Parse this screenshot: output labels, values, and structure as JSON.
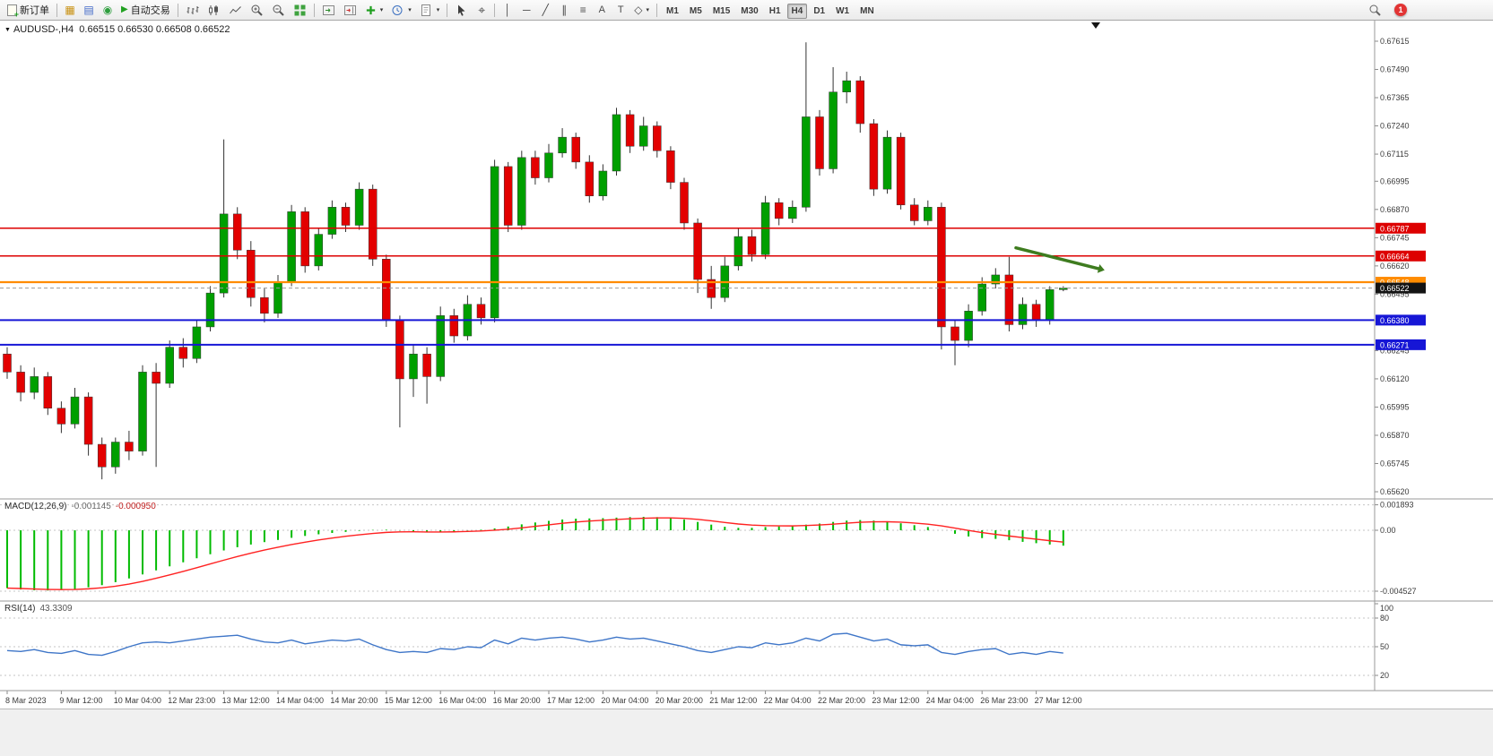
{
  "toolbar": {
    "new_order": "新订单",
    "autotrading": "自动交易",
    "timeframes": [
      "M1",
      "M5",
      "M15",
      "M30",
      "H1",
      "H4",
      "D1",
      "W1",
      "MN"
    ],
    "active_timeframe": "H4",
    "notification_count": "1"
  },
  "panels": {
    "main": {
      "symbol_period": "AUDUSD-,H4",
      "ohlc": "0.66515 0.66530 0.66508 0.66522"
    },
    "macd": {
      "name": "MACD(12,26,9)",
      "value_main": "-0.001145",
      "value_signal": "-0.000950"
    },
    "rsi": {
      "name": "RSI(14)",
      "value": "43.3309"
    }
  },
  "chart_data": [
    {
      "type": "candlestick",
      "title": "AUDUSD-,H4",
      "open": "0.66515",
      "high": "0.66530",
      "low": "0.66508",
      "close": "0.66522",
      "price_axis_labels": [
        "0.67615",
        "0.67490",
        "0.67365",
        "0.67240",
        "0.67115",
        "0.66995",
        "0.66870",
        "0.66745",
        "0.66620",
        "0.66495",
        "0.66245",
        "0.66120",
        "0.65995",
        "0.65870",
        "0.65745",
        "0.65620"
      ],
      "x_labels": [
        "8 Mar 2023",
        "9 Mar 12:00",
        "10 Mar 04:00",
        "12 Mar 23:00",
        "13 Mar 12:00",
        "14 Mar 04:00",
        "14 Mar 20:00",
        "15 Mar 12:00",
        "16 Mar 04:00",
        "16 Mar 20:00",
        "17 Mar 12:00",
        "20 Mar 04:00",
        "20 Mar 20:00",
        "21 Mar 12:00",
        "22 Mar 04:00",
        "22 Mar 20:00",
        "23 Mar 12:00",
        "24 Mar 04:00",
        "26 Mar 23:00",
        "27 Mar 12:00"
      ],
      "candles": [
        [
          0.6623,
          0.6626,
          0.6612,
          0.6615
        ],
        [
          0.6615,
          0.6618,
          0.6602,
          0.6606
        ],
        [
          0.6606,
          0.6617,
          0.6603,
          0.6613
        ],
        [
          0.6613,
          0.6615,
          0.6596,
          0.6599
        ],
        [
          0.6599,
          0.6602,
          0.6588,
          0.6592
        ],
        [
          0.6592,
          0.6608,
          0.659,
          0.6604
        ],
        [
          0.6604,
          0.6606,
          0.6578,
          0.6583
        ],
        [
          0.6583,
          0.6586,
          0.65675,
          0.6573
        ],
        [
          0.6573,
          0.6586,
          0.657,
          0.6584
        ],
        [
          0.6584,
          0.6589,
          0.6576,
          0.658
        ],
        [
          0.658,
          0.6618,
          0.6578,
          0.6615
        ],
        [
          0.6615,
          0.6619,
          0.6573,
          0.661
        ],
        [
          0.661,
          0.6629,
          0.6608,
          0.6626
        ],
        [
          0.6626,
          0.663,
          0.6617,
          0.6621
        ],
        [
          0.6621,
          0.6638,
          0.6619,
          0.6635
        ],
        [
          0.6635,
          0.6653,
          0.6633,
          0.665
        ],
        [
          0.665,
          0.6718,
          0.6648,
          0.6685
        ],
        [
          0.6685,
          0.6688,
          0.6665,
          0.6669
        ],
        [
          0.6669,
          0.6673,
          0.6644,
          0.6648
        ],
        [
          0.6648,
          0.6652,
          0.6637,
          0.6641
        ],
        [
          0.6641,
          0.6658,
          0.6639,
          0.6655
        ],
        [
          0.6655,
          0.6689,
          0.6653,
          0.6686
        ],
        [
          0.6686,
          0.6688,
          0.6659,
          0.6662
        ],
        [
          0.6662,
          0.6679,
          0.666,
          0.6676
        ],
        [
          0.6676,
          0.6691,
          0.6674,
          0.6688
        ],
        [
          0.6688,
          0.669,
          0.6677,
          0.668
        ],
        [
          0.668,
          0.6699,
          0.6678,
          0.6696
        ],
        [
          0.6696,
          0.6698,
          0.6662,
          0.6665
        ],
        [
          0.6665,
          0.6667,
          0.6635,
          0.6638
        ],
        [
          0.6638,
          0.664,
          0.65905,
          0.6612
        ],
        [
          0.6612,
          0.6627,
          0.6604,
          0.6623
        ],
        [
          0.6623,
          0.6626,
          0.6601,
          0.6613
        ],
        [
          0.6613,
          0.6644,
          0.6611,
          0.664
        ],
        [
          0.664,
          0.6643,
          0.6628,
          0.6631
        ],
        [
          0.6631,
          0.6649,
          0.6629,
          0.6645
        ],
        [
          0.6645,
          0.6648,
          0.6636,
          0.6639
        ],
        [
          0.6639,
          0.6709,
          0.6637,
          0.6706
        ],
        [
          0.6706,
          0.6708,
          0.6677,
          0.668
        ],
        [
          0.668,
          0.6713,
          0.6678,
          0.671
        ],
        [
          0.671,
          0.6713,
          0.6698,
          0.6701
        ],
        [
          0.6701,
          0.6716,
          0.6699,
          0.6712
        ],
        [
          0.6712,
          0.6723,
          0.671,
          0.6719
        ],
        [
          0.6719,
          0.6721,
          0.6705,
          0.6708
        ],
        [
          0.6708,
          0.6711,
          0.669,
          0.6693
        ],
        [
          0.6693,
          0.6707,
          0.6691,
          0.6704
        ],
        [
          0.6704,
          0.6732,
          0.6702,
          0.6729
        ],
        [
          0.6729,
          0.6731,
          0.6712,
          0.6715
        ],
        [
          0.6715,
          0.6728,
          0.6713,
          0.6724
        ],
        [
          0.6724,
          0.6726,
          0.671,
          0.6713
        ],
        [
          0.6713,
          0.6715,
          0.6696,
          0.6699
        ],
        [
          0.6699,
          0.6701,
          0.6678,
          0.6681
        ],
        [
          0.6681,
          0.6683,
          0.665,
          0.6656
        ],
        [
          0.6656,
          0.6662,
          0.6643,
          0.6648
        ],
        [
          0.6648,
          0.6666,
          0.6646,
          0.6662
        ],
        [
          0.6662,
          0.6679,
          0.666,
          0.6675
        ],
        [
          0.6675,
          0.6678,
          0.6664,
          0.6667
        ],
        [
          0.6667,
          0.6693,
          0.6665,
          0.669
        ],
        [
          0.669,
          0.6692,
          0.668,
          0.6683
        ],
        [
          0.6683,
          0.6691,
          0.6681,
          0.6688
        ],
        [
          0.6688,
          0.6761,
          0.6686,
          0.6728
        ],
        [
          0.6728,
          0.6731,
          0.6702,
          0.6705
        ],
        [
          0.6705,
          0.675,
          0.6703,
          0.6739
        ],
        [
          0.6739,
          0.6748,
          0.6734,
          0.6744
        ],
        [
          0.6744,
          0.6746,
          0.6721,
          0.6725
        ],
        [
          0.6725,
          0.6727,
          0.6693,
          0.6696
        ],
        [
          0.6696,
          0.6722,
          0.6694,
          0.6719
        ],
        [
          0.6719,
          0.6721,
          0.6687,
          0.6689
        ],
        [
          0.6689,
          0.6692,
          0.668,
          0.6682
        ],
        [
          0.6682,
          0.6691,
          0.668,
          0.6688
        ],
        [
          0.6688,
          0.669,
          0.6625,
          0.6635
        ],
        [
          0.6635,
          0.6638,
          0.6618,
          0.6629
        ],
        [
          0.6629,
          0.6645,
          0.6626,
          0.6642
        ],
        [
          0.6642,
          0.6657,
          0.664,
          0.6654
        ],
        [
          0.6654,
          0.6661,
          0.6652,
          0.6658
        ],
        [
          0.6658,
          0.6666,
          0.6633,
          0.6636
        ],
        [
          0.6636,
          0.6648,
          0.6634,
          0.6645
        ],
        [
          0.6645,
          0.6647,
          0.6635,
          0.6638
        ],
        [
          0.6638,
          0.6653,
          0.6636,
          0.66515
        ],
        [
          0.66515,
          0.6653,
          0.66508,
          0.66522
        ]
      ],
      "hlines": [
        {
          "price": 0.66787,
          "color": "#dd0000",
          "width": 1.5,
          "label": "0.66787"
        },
        {
          "price": 0.66664,
          "color": "#dd0000",
          "width": 1.5,
          "label": "0.66664"
        },
        {
          "price": 0.66548,
          "color": "#ff8c00",
          "width": 2.2,
          "label": "0.66548"
        },
        {
          "price": 0.6638,
          "color": "#1616d6",
          "width": 2,
          "label": "0.66380"
        },
        {
          "price": 0.66271,
          "color": "#1616d6",
          "width": 2,
          "label": "0.66271"
        }
      ],
      "current_price": {
        "value": 0.66522,
        "label": "0.66522",
        "color": "#141414"
      },
      "arrow_annotation": {
        "from_index": 74.5,
        "from_price": 0.667,
        "to_index": 80.6,
        "to_price": 0.66608,
        "color": "#3e7c1f"
      },
      "colors": {
        "up": "#009f00",
        "down": "#e30000",
        "background": "#ffffff"
      }
    },
    {
      "type": "bar",
      "name": "MACD(12,26,9)",
      "main_current": -0.001145,
      "signal_current": -0.00095,
      "y_axis_labels": [
        "0.001893",
        "0.00",
        "-0.004527"
      ],
      "values": [
        -0.0043,
        -0.0044,
        -0.00446,
        -0.00448,
        -0.00444,
        -0.00436,
        -0.00424,
        -0.00408,
        -0.00386,
        -0.00358,
        -0.00328,
        -0.00298,
        -0.00268,
        -0.00238,
        -0.00208,
        -0.00178,
        -0.0015,
        -0.00126,
        -0.00106,
        -0.00088,
        -0.00072,
        -0.00056,
        -0.00042,
        -0.0003,
        -0.0002,
        -0.00012,
        -4e-05,
        2e-05,
        4e-05,
        -2e-05,
        -0.0001,
        -0.00016,
        -0.00014,
        -8e-05,
        -2e-05,
        4e-05,
        0.00014,
        0.00028,
        0.00044,
        0.00058,
        0.0007,
        0.0008,
        0.00086,
        0.00088,
        0.0009,
        0.00094,
        0.00098,
        0.001,
        0.00098,
        0.00092,
        0.0008,
        0.00062,
        0.00042,
        0.00026,
        0.00018,
        0.00018,
        0.00024,
        0.00028,
        0.00032,
        0.00042,
        0.0005,
        0.00062,
        0.00072,
        0.00076,
        0.00072,
        0.00064,
        0.00052,
        0.00038,
        0.00024,
        0,
        -0.00026,
        -0.00046,
        -0.00058,
        -0.00064,
        -0.00074,
        -0.00086,
        -0.00096,
        -0.00106,
        -0.001145
      ],
      "colors": {
        "histogram": "#00bb00",
        "signal": "#ff2222"
      }
    },
    {
      "type": "line",
      "name": "RSI(14)",
      "current": 43.3309,
      "levels": [
        100,
        80,
        50,
        20
      ],
      "y_axis_labels": [
        "100",
        "80",
        "50",
        "20"
      ],
      "values": [
        46,
        45,
        47,
        44,
        43,
        46,
        42,
        41,
        45,
        50,
        54,
        55,
        54,
        56,
        58,
        60,
        61,
        62,
        58,
        55,
        54,
        57,
        53,
        55,
        57,
        56,
        58,
        52,
        47,
        44,
        45,
        44,
        48,
        47,
        50,
        49,
        57,
        53,
        59,
        57,
        59,
        60,
        58,
        55,
        57,
        60,
        58,
        59,
        56,
        53,
        50,
        46,
        44,
        47,
        50,
        49,
        54,
        52,
        54,
        59,
        56,
        63,
        64,
        60,
        56,
        58,
        52,
        51,
        52,
        44,
        42,
        45,
        47,
        48,
        42,
        44,
        42,
        45,
        43.33
      ],
      "color": "#3f76c8"
    }
  ]
}
